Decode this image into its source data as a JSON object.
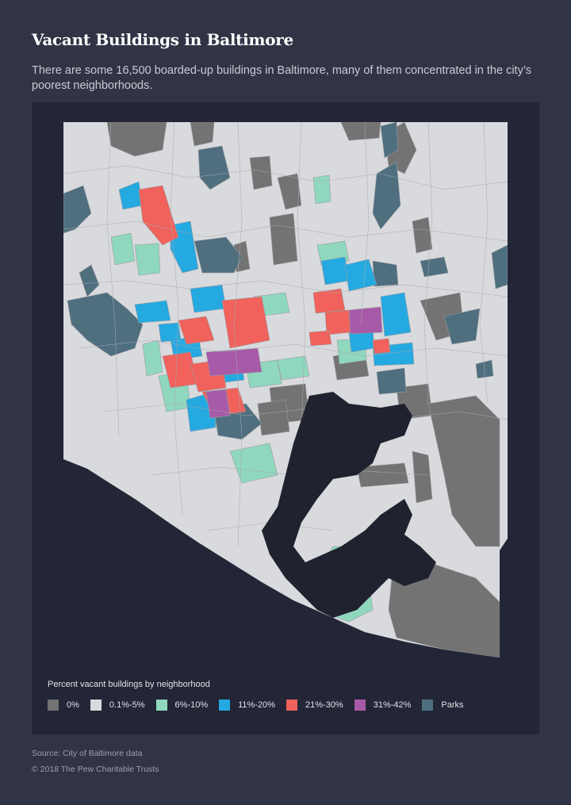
{
  "title": "Vacant Buildings in Baltimore",
  "subtitle": "There are some 16,500 boarded-up buildings in Baltimore, many of them concentrated in the city’s poorest neighborhoods.",
  "legend": {
    "title": "Percent vacant buildings by neighborhood",
    "items": [
      {
        "label": "0%",
        "color": "#737373"
      },
      {
        "label": "0.1%-5%",
        "color": "#d9dadd"
      },
      {
        "label": "6%-10%",
        "color": "#8fd7bd"
      },
      {
        "label": "11%-20%",
        "color": "#25a9e1"
      },
      {
        "label": "21%-30%",
        "color": "#f0625b"
      },
      {
        "label": "31%-42%",
        "color": "#a75aa8"
      },
      {
        "label": "Parks",
        "color": "#4f6f7f"
      }
    ]
  },
  "colors": {
    "background": "#313445",
    "map_panel": "#232636",
    "water": "#20222f"
  },
  "source": "Source: City of Baltimore data",
  "copyright": "© 2018 The Pew Charitable Trusts"
}
